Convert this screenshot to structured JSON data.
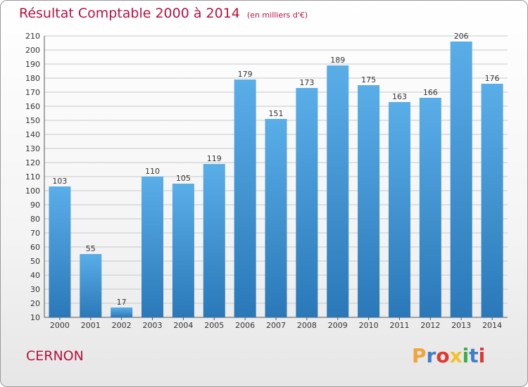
{
  "header": {
    "title": "Résultat Comptable 2000 à 2014",
    "unit": "(en milliers d'€)"
  },
  "footer": {
    "city": "CERNON",
    "brand": "Proxiti",
    "brand_letters": [
      {
        "char": "P",
        "color": "#f2a33a"
      },
      {
        "char": "r",
        "color": "#3f7fc9"
      },
      {
        "char": "o",
        "color": "#e0382f"
      },
      {
        "char": "x",
        "color": "#f2c12e"
      },
      {
        "char": "i",
        "color": "#3fae49"
      },
      {
        "char": "t",
        "color": "#3f7fc9"
      },
      {
        "char": "i",
        "color": "#e0382f"
      }
    ]
  },
  "colors": {
    "accent": "#b5123e",
    "bar_light": "#5aaee8",
    "bar_dark": "#2a78b8",
    "grid": "#c8c8c8"
  },
  "chart_data": {
    "type": "bar",
    "title": "Résultat Comptable 2000 à 2014",
    "subtitle": "(en milliers d'€)",
    "categories": [
      "2000",
      "2001",
      "2002",
      "2003",
      "2004",
      "2005",
      "2006",
      "2007",
      "2008",
      "2009",
      "2010",
      "2011",
      "2012",
      "2013",
      "2014"
    ],
    "values": [
      103,
      55,
      17,
      110,
      105,
      119,
      179,
      151,
      173,
      189,
      175,
      163,
      166,
      206,
      176
    ],
    "data_labels": [
      "103",
      "55",
      "17",
      "110",
      "105",
      "119",
      "179",
      "151",
      "173",
      "189",
      "175",
      "163",
      "166",
      "206",
      "176"
    ],
    "ylim": [
      10,
      210
    ],
    "yticks": [
      "10",
      "20",
      "30",
      "40",
      "50",
      "60",
      "70",
      "80",
      "90",
      "100",
      "110",
      "120",
      "130",
      "140",
      "150",
      "160",
      "170",
      "180",
      "190",
      "200",
      "210"
    ],
    "grid": true,
    "xlabel": "",
    "ylabel": ""
  }
}
